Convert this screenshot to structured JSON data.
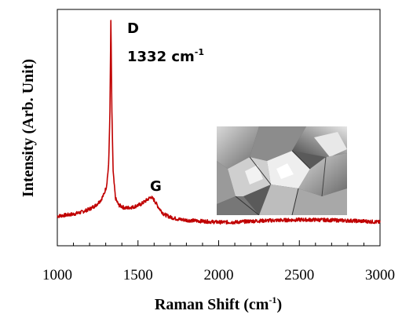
{
  "chart_data": {
    "type": "line",
    "xlabel_main": "Raman Shift (cm",
    "xlabel_sup": "-1",
    "xlabel_end": ")",
    "ylabel": "Intensity (Arb. Unit)",
    "xlim": [
      1000,
      3000
    ],
    "x_ticks": [
      1000,
      1500,
      2000,
      2500,
      3000
    ],
    "x_tick_labels": [
      "1000",
      "1500",
      "2000",
      "2500",
      "3000"
    ],
    "y_ticks_shown": false,
    "grid": false,
    "series": [
      {
        "color": "#c00000",
        "x": [
          1000,
          1050,
          1100,
          1150,
          1200,
          1240,
          1270,
          1290,
          1305,
          1318,
          1326,
          1330,
          1332,
          1334,
          1338,
          1346,
          1360,
          1380,
          1420,
          1470,
          1520,
          1555,
          1580,
          1600,
          1630,
          1660,
          1700,
          1750,
          1800,
          1900,
          2000,
          2100,
          2200,
          2300,
          2400,
          2500,
          2600,
          2700,
          2800,
          2900,
          3000
        ],
        "y": [
          0.03,
          0.035,
          0.04,
          0.05,
          0.065,
          0.085,
          0.11,
          0.14,
          0.18,
          0.28,
          0.55,
          0.85,
          1.0,
          0.88,
          0.55,
          0.25,
          0.12,
          0.085,
          0.07,
          0.075,
          0.09,
          0.11,
          0.125,
          0.11,
          0.07,
          0.04,
          0.025,
          0.015,
          0.01,
          0.005,
          0.0,
          0.0,
          0.005,
          0.008,
          0.01,
          0.012,
          0.012,
          0.01,
          0.008,
          0.005,
          0.0
        ]
      }
    ],
    "annotations": {
      "d_label": "D",
      "d_value": "1332 cm",
      "d_value_sup": "-1",
      "g_label": "G"
    },
    "inset": "SEM image of faceted diamond crystals"
  }
}
